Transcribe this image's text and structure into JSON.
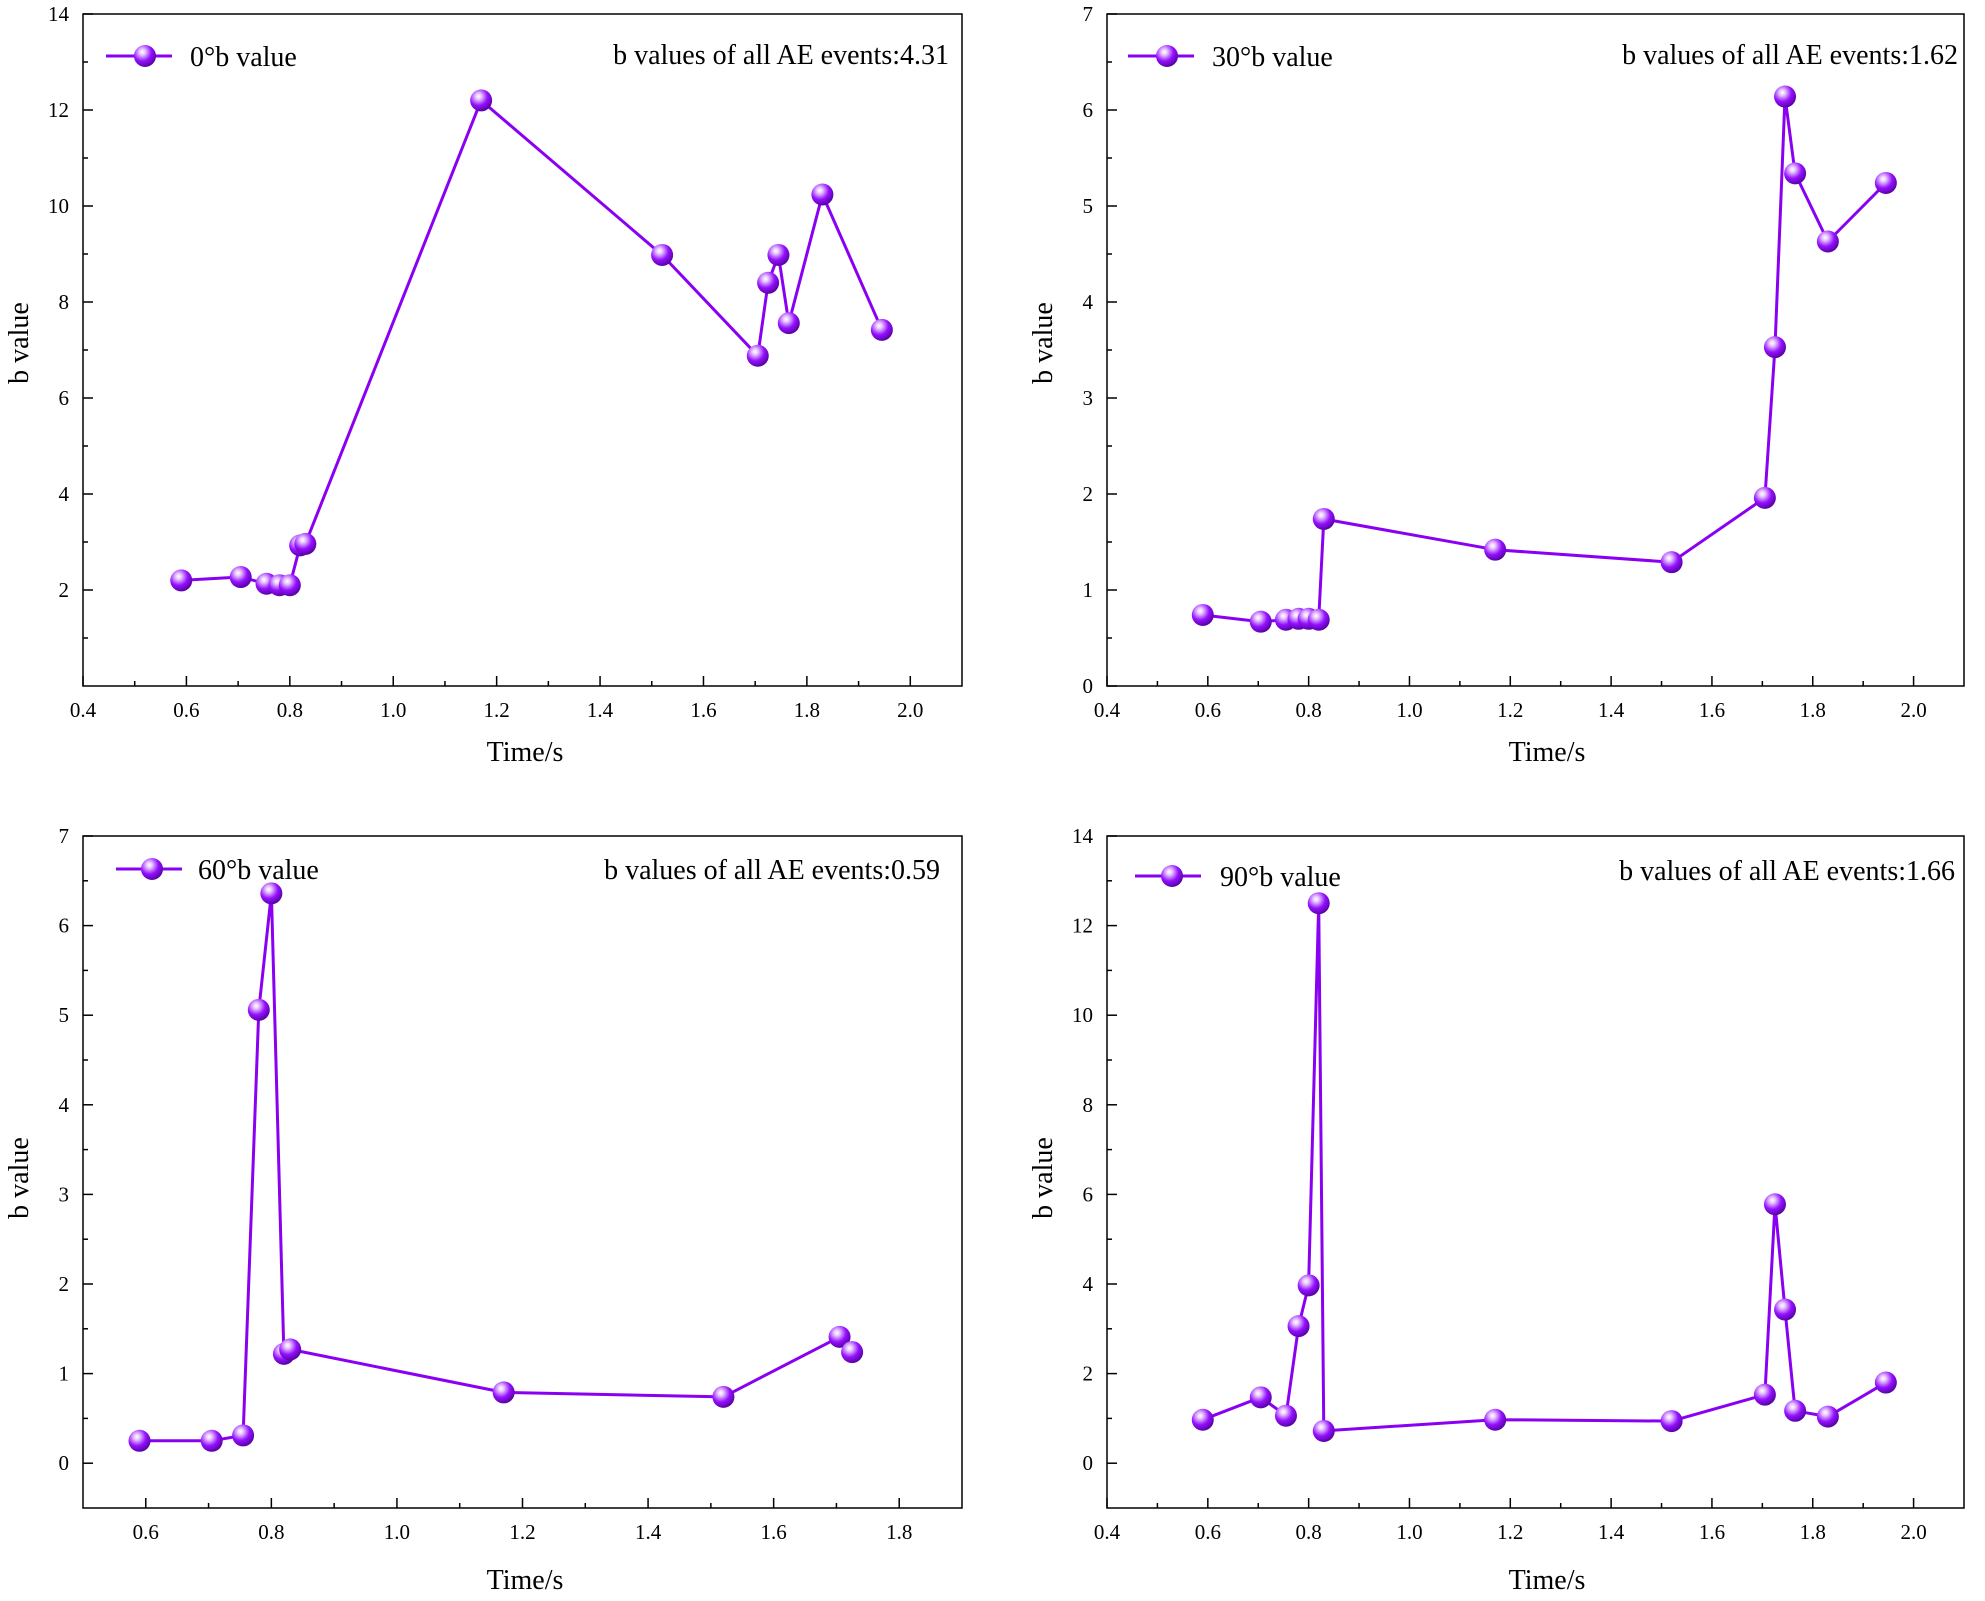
{
  "chart_data": [
    {
      "type": "line",
      "title": "",
      "xlabel": "Time/s",
      "ylabel": "b value",
      "xlim": [
        0.4,
        2.1
      ],
      "ylim": [
        0,
        14
      ],
      "xticks": [
        "0.4",
        "0.6",
        "0.8",
        "1.0",
        "1.2",
        "1.4",
        "1.6",
        "1.8",
        "2.0"
      ],
      "yticks": [
        "2",
        "4",
        "6",
        "8",
        "10",
        "12",
        "14"
      ],
      "legend": "top-left",
      "annotation": "b values of all AE events:4.31",
      "series": [
        {
          "name": "0°b value",
          "color": "#8A00F2",
          "x": [
            0.59,
            0.705,
            0.755,
            0.78,
            0.8,
            0.82,
            0.83,
            1.17,
            1.52,
            1.705,
            1.725,
            1.745,
            1.765,
            1.83,
            1.945
          ],
          "y": [
            2.2,
            2.27,
            2.13,
            2.1,
            2.1,
            2.93,
            2.96,
            12.2,
            8.98,
            6.88,
            8.4,
            8.98,
            7.56,
            10.24,
            7.42
          ]
        }
      ]
    },
    {
      "type": "line",
      "title": "",
      "xlabel": "Time/s",
      "ylabel": "b value",
      "xlim": [
        0.4,
        2.1
      ],
      "ylim": [
        0,
        7
      ],
      "xticks": [
        "0.4",
        "0.6",
        "0.8",
        "1.0",
        "1.2",
        "1.4",
        "1.6",
        "1.8",
        "2.0"
      ],
      "yticks": [
        "0",
        "1",
        "2",
        "3",
        "4",
        "5",
        "6",
        "7"
      ],
      "legend": "top-left",
      "annotation": "b values of all AE events:1.62",
      "series": [
        {
          "name": "30°b value",
          "color": "#8A00F2",
          "x": [
            0.59,
            0.705,
            0.755,
            0.78,
            0.8,
            0.82,
            0.83,
            1.17,
            1.52,
            1.705,
            1.725,
            1.745,
            1.765,
            1.83,
            1.945
          ],
          "y": [
            0.74,
            0.67,
            0.69,
            0.7,
            0.7,
            0.69,
            1.74,
            1.42,
            1.29,
            1.96,
            3.53,
            6.14,
            5.34,
            4.63,
            5.24
          ]
        }
      ]
    },
    {
      "type": "line",
      "title": "",
      "xlabel": "Time/s",
      "ylabel": "b value",
      "xlim": [
        0.5,
        1.9
      ],
      "ylim": [
        -0.5,
        7
      ],
      "xticks": [
        "0.6",
        "0.8",
        "1.0",
        "1.2",
        "1.4",
        "1.6",
        "1.8"
      ],
      "yticks": [
        "0",
        "1",
        "2",
        "3",
        "4",
        "5",
        "6",
        "7"
      ],
      "legend": "top-left",
      "annotation": "b values of all AE events:0.59",
      "series": [
        {
          "name": "60°b value",
          "color": "#8A00F2",
          "x": [
            0.59,
            0.705,
            0.755,
            0.78,
            0.8,
            0.82,
            0.83,
            1.17,
            1.52,
            1.705,
            1.725
          ],
          "y": [
            0.25,
            0.25,
            0.31,
            5.06,
            6.36,
            1.22,
            1.27,
            0.79,
            0.74,
            1.41,
            1.24
          ]
        }
      ]
    },
    {
      "type": "line",
      "title": "",
      "xlabel": "Time/s",
      "ylabel": "b value",
      "xlim": [
        0.4,
        2.1
      ],
      "ylim": [
        -1,
        14
      ],
      "xticks": [
        "0.4",
        "0.6",
        "0.8",
        "1.0",
        "1.2",
        "1.4",
        "1.6",
        "1.8",
        "2.0"
      ],
      "yticks": [
        "0",
        "2",
        "4",
        "6",
        "8",
        "10",
        "12",
        "14"
      ],
      "legend": "top-left",
      "annotation": "b values of all AE events:1.66",
      "series": [
        {
          "name": "90°b value",
          "color": "#8A00F2",
          "x": [
            0.59,
            0.705,
            0.755,
            0.78,
            0.8,
            0.82,
            0.83,
            1.17,
            1.52,
            1.705,
            1.725,
            1.745,
            1.765,
            1.83,
            1.945
          ],
          "y": [
            0.97,
            1.47,
            1.06,
            3.06,
            3.97,
            12.5,
            0.72,
            0.97,
            0.94,
            1.53,
            5.78,
            3.43,
            1.17,
            1.04,
            1.8
          ]
        }
      ]
    }
  ]
}
